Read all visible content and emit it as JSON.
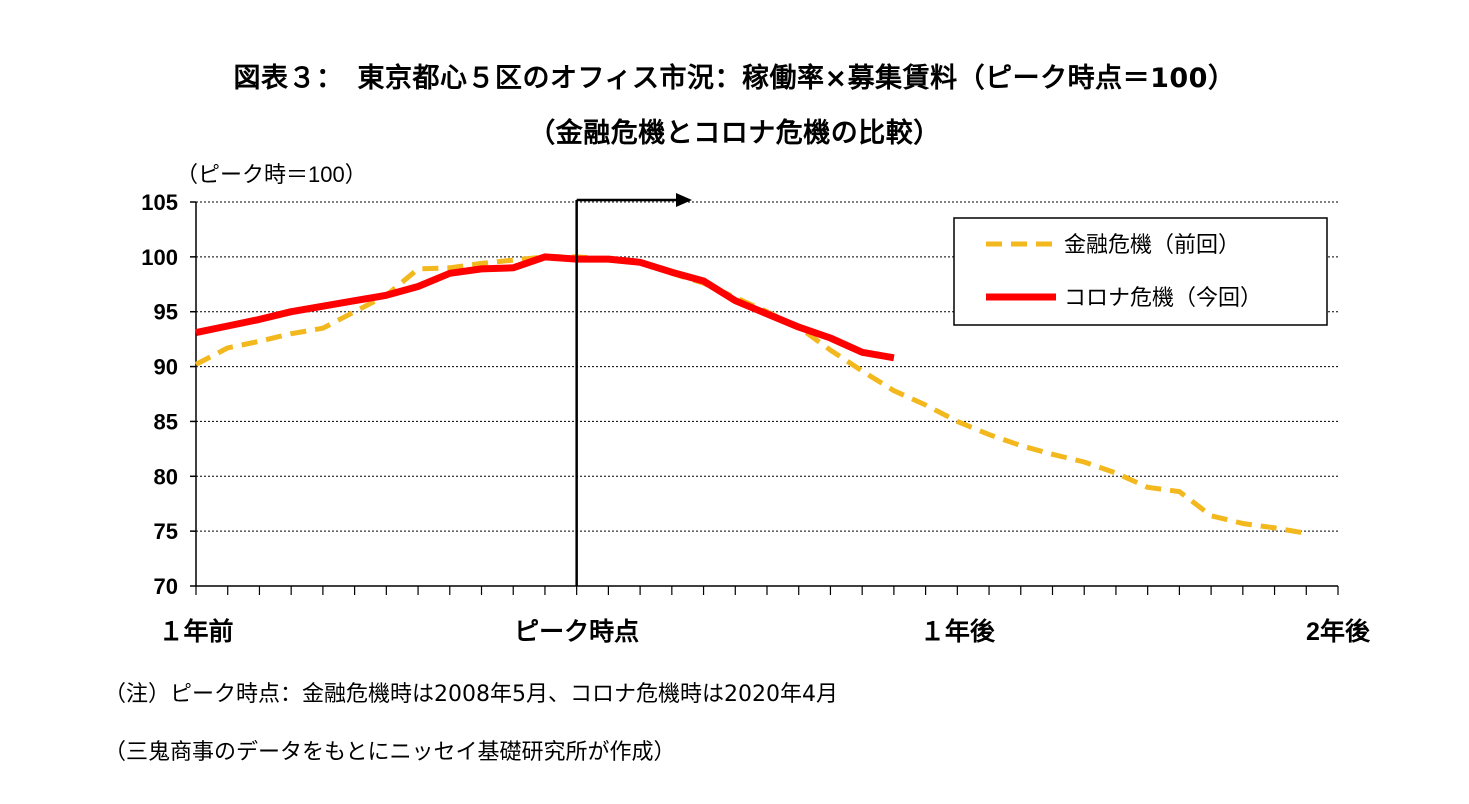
{
  "chart_data": {
    "type": "line",
    "title": "図表３：　東京都心５区のオフィス市況：稼働率×募集賃料（ピーク時点＝100）",
    "subtitle": "（金融危機とコロナ危機の比較）",
    "ylabel": "（ピーク時＝100）",
    "xlabel": "",
    "ylim": [
      70,
      105
    ],
    "yticks": [
      105,
      100,
      95,
      90,
      85,
      80,
      75,
      70
    ],
    "x_range": [
      -12,
      24
    ],
    "x_tick_labels": [
      {
        "x": -12,
        "label": "１年前"
      },
      {
        "x": 0,
        "label": "ピーク時点"
      },
      {
        "x": 12,
        "label": "１年後"
      },
      {
        "x": 24,
        "label": "2年後"
      }
    ],
    "grid": true,
    "legend_position": "top-right",
    "marker_x": 0,
    "series": [
      {
        "name": "金融危機（前回）",
        "color": "#F2B81D",
        "style": "dashed",
        "points": [
          [
            -12,
            90.2
          ],
          [
            -11,
            91.7
          ],
          [
            -10,
            92.3
          ],
          [
            -9,
            93.0
          ],
          [
            -8,
            93.5
          ],
          [
            -7,
            95.0
          ],
          [
            -6,
            96.5
          ],
          [
            -5,
            98.9
          ],
          [
            -4,
            99.0
          ],
          [
            -3,
            99.4
          ],
          [
            -2,
            99.7
          ],
          [
            -1,
            100.0
          ],
          [
            0,
            100.0
          ],
          [
            1,
            99.8
          ],
          [
            2,
            99.6
          ],
          [
            3,
            98.5
          ],
          [
            4,
            97.6
          ],
          [
            5,
            96.3
          ],
          [
            6,
            95.0
          ],
          [
            7,
            93.6
          ],
          [
            8,
            91.5
          ],
          [
            9,
            89.6
          ],
          [
            10,
            87.8
          ],
          [
            11,
            86.5
          ],
          [
            12,
            85.0
          ],
          [
            13,
            83.8
          ],
          [
            14,
            82.8
          ],
          [
            15,
            82.0
          ],
          [
            16,
            81.3
          ],
          [
            17,
            80.3
          ],
          [
            18,
            79.0
          ],
          [
            19,
            78.6
          ],
          [
            20,
            76.4
          ],
          [
            21,
            75.7
          ],
          [
            22,
            75.3
          ],
          [
            23,
            74.8
          ]
        ]
      },
      {
        "name": "コロナ危機（今回）",
        "color": "#FF0000",
        "style": "solid",
        "points": [
          [
            -12,
            93.1
          ],
          [
            -11,
            93.7
          ],
          [
            -10,
            94.3
          ],
          [
            -9,
            95.0
          ],
          [
            -8,
            95.5
          ],
          [
            -7,
            96.0
          ],
          [
            -6,
            96.5
          ],
          [
            -5,
            97.3
          ],
          [
            -4,
            98.5
          ],
          [
            -3,
            98.9
          ],
          [
            -2,
            99.0
          ],
          [
            -1,
            100.0
          ],
          [
            0,
            99.8
          ],
          [
            1,
            99.8
          ],
          [
            2,
            99.5
          ],
          [
            3,
            98.6
          ],
          [
            4,
            97.8
          ],
          [
            5,
            96.0
          ],
          [
            6,
            94.8
          ],
          [
            7,
            93.6
          ],
          [
            8,
            92.6
          ],
          [
            9,
            91.3
          ],
          [
            10,
            90.8
          ]
        ]
      }
    ]
  },
  "notes": {
    "note1": "（注）ピーク時点：金融危機時は2008年5月、コロナ危機時は2020年4月",
    "note2": "（三鬼商事のデータをもとにニッセイ基礎研究所が作成）"
  }
}
